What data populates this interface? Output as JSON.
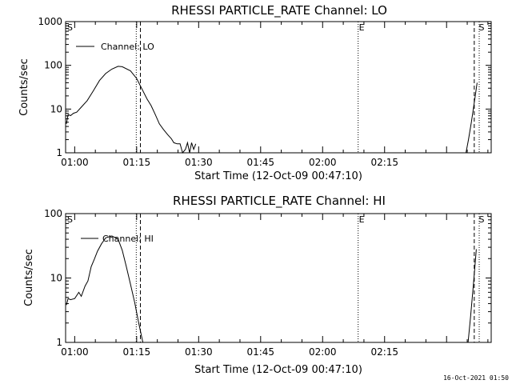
{
  "timestamp": "16-Oct-2021 01:50",
  "chart_data": [
    {
      "type": "line",
      "title": "RHESSI PARTICLE_RATE Channel: LO",
      "xlabel": "Start Time (12-Oct-09 00:47:10)",
      "ylabel": "Counts/sec",
      "yscale": "log",
      "ylim": [
        1,
        1000
      ],
      "y_ticks": [
        "1",
        "10",
        "100",
        "1000"
      ],
      "xlim_minutes": [
        -2.2,
        100.8
      ],
      "x_ticks": [
        {
          "m": 0,
          "label": "01:00"
        },
        {
          "m": 15,
          "label": "01:15"
        },
        {
          "m": 30,
          "label": "01:30"
        },
        {
          "m": 45,
          "label": "01:45"
        },
        {
          "m": 60,
          "label": "02:00"
        },
        {
          "m": 75,
          "label": "02:15"
        }
      ],
      "legend_position": "top-left",
      "series": [
        {
          "name": "Channel: LO",
          "x": [
            -2.0,
            -1.6,
            -1.0,
            -0.3,
            0.5,
            1.5,
            3.0,
            4.5,
            6.0,
            7.5,
            9.0,
            10.5,
            11.5,
            13.5,
            15.0,
            16.2,
            17.5,
            18.5,
            19.5,
            20.5,
            21.5,
            22.5,
            23.4,
            24.0,
            24.8,
            25.5,
            26.1,
            26.8,
            27.3,
            27.8,
            28.3,
            28.8,
            29.3
          ],
          "y": [
            4.6,
            7.5,
            7.1,
            8.0,
            8.5,
            10.8,
            15.5,
            26,
            45,
            65,
            82,
            95,
            93,
            75,
            50,
            30,
            17,
            12,
            7.5,
            4.6,
            3.4,
            2.6,
            2.1,
            1.7,
            1.6,
            1.6,
            1.0,
            1.2,
            1.7,
            1.0,
            1.7,
            1.2,
            1.6
          ]
        },
        {
          "name": "Channel: LO",
          "x": [
            94.7,
            95.3,
            96.0,
            96.8,
            97.4
          ],
          "y": [
            1.0,
            2.0,
            5.0,
            16,
            40
          ]
        }
      ],
      "markers": [
        {
          "label": "S",
          "m": -2.0
        },
        {
          "label": "E",
          "m": 68.6
        },
        {
          "label": "S",
          "m": 97.6
        }
      ]
    },
    {
      "type": "line",
      "title": "RHESSI PARTICLE_RATE Channel: HI",
      "xlabel": "Start Time (12-Oct-09 00:47:10)",
      "ylabel": "Counts/sec",
      "yscale": "log",
      "ylim": [
        1,
        100
      ],
      "y_ticks": [
        "1",
        "10",
        "100"
      ],
      "xlim_minutes": [
        -2.2,
        100.8
      ],
      "x_ticks": [
        {
          "m": 0,
          "label": "01:00"
        },
        {
          "m": 15,
          "label": "01:15"
        },
        {
          "m": 30,
          "label": "01:30"
        },
        {
          "m": 45,
          "label": "01:45"
        },
        {
          "m": 60,
          "label": "02:00"
        },
        {
          "m": 75,
          "label": "02:15"
        }
      ],
      "legend_position": "top-left",
      "series": [
        {
          "name": "Channel: HI",
          "x": [
            -2.0,
            -1.6,
            -1.0,
            0.0,
            1.0,
            1.6,
            2.5,
            3.2,
            4.0,
            4.8,
            5.5,
            6.5,
            7.5,
            9.0,
            10.5,
            11.5,
            12.5,
            13.5,
            14.5,
            15.5,
            16.5
          ],
          "y": [
            3.8,
            4.8,
            4.6,
            4.8,
            6.0,
            5.2,
            7.5,
            9.0,
            15,
            20,
            26,
            34,
            42,
            45,
            40,
            27,
            15,
            8,
            4.2,
            2.0,
            1.0
          ]
        },
        {
          "name": "Channel: HI",
          "x": [
            95.2,
            95.8,
            96.5,
            97.2
          ],
          "y": [
            1.0,
            2.5,
            8.0,
            28
          ]
        }
      ],
      "markers": [
        {
          "label": "S",
          "m": -2.0
        },
        {
          "label": "E",
          "m": 68.6
        },
        {
          "label": "S",
          "m": 97.6
        }
      ]
    }
  ]
}
